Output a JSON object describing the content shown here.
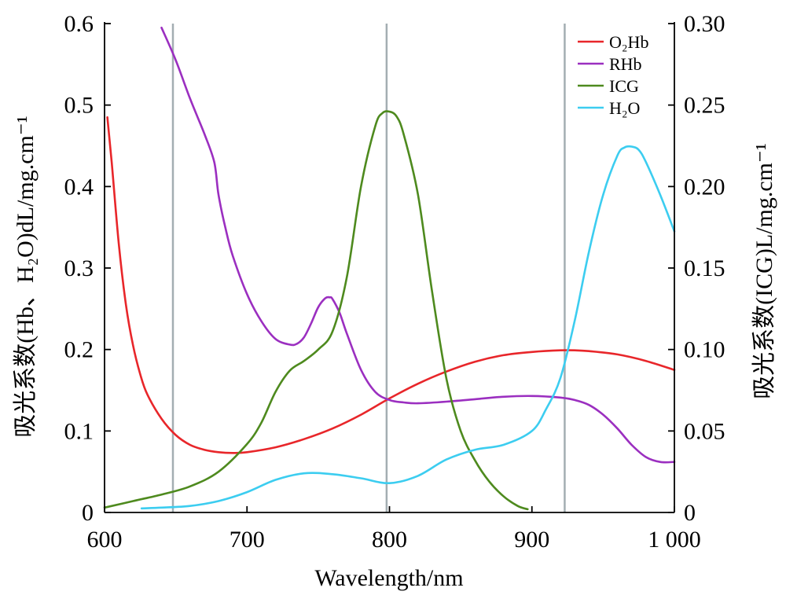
{
  "chart_data": {
    "type": "line",
    "xlabel": "Wavelength/nm",
    "ylabel_left": "吸光系数(Hb、H₂O)dL/mg.cm⁻¹",
    "ylabel_right": "吸光系数(ICG)L/mg.cm⁻¹",
    "xlim": [
      600,
      1000
    ],
    "ylim_left": [
      0,
      0.6
    ],
    "ylim_right": [
      0,
      0.3
    ],
    "x_ticks": [
      600,
      700,
      800,
      900,
      1000
    ],
    "x_tick_labels": [
      "600",
      "700",
      "800",
      "900",
      "1 000"
    ],
    "y_left_ticks": [
      0,
      0.1,
      0.2,
      0.3,
      0.4,
      0.5,
      0.6
    ],
    "y_left_tick_labels": [
      "0",
      "0.1",
      "0.2",
      "0.3",
      "0.4",
      "0.5",
      "0.6"
    ],
    "y_right_ticks": [
      0,
      0.05,
      0.1,
      0.15,
      0.2,
      0.25,
      0.3
    ],
    "y_right_tick_labels": [
      "0",
      "0.05",
      "0.10",
      "0.15",
      "0.20",
      "0.25",
      "0.30"
    ],
    "vertical_lines": [
      648,
      798,
      923
    ],
    "grid": false,
    "legend_position": "top-right",
    "series": [
      {
        "name": "O₂Hb",
        "axis": "left",
        "color": "#e8262a",
        "x": [
          602,
          605,
          610,
          615,
          620,
          625,
          630,
          640,
          650,
          660,
          670,
          680,
          690,
          700,
          720,
          740,
          760,
          780,
          800,
          820,
          840,
          860,
          880,
          900,
          920,
          930,
          940,
          960,
          980,
          1000
        ],
        "y": [
          0.485,
          0.43,
          0.33,
          0.255,
          0.205,
          0.17,
          0.145,
          0.115,
          0.095,
          0.083,
          0.077,
          0.074,
          0.073,
          0.074,
          0.08,
          0.09,
          0.103,
          0.12,
          0.14,
          0.158,
          0.173,
          0.185,
          0.193,
          0.197,
          0.199,
          0.199,
          0.198,
          0.194,
          0.186,
          0.175
        ]
      },
      {
        "name": "RHb",
        "axis": "left",
        "color": "#9b2fc0",
        "x": [
          640,
          650,
          660,
          670,
          677,
          680,
          685,
          690,
          700,
          710,
          720,
          730,
          735,
          740,
          745,
          750,
          755,
          758,
          760,
          765,
          770,
          780,
          790,
          800,
          810,
          820,
          840,
          860,
          880,
          900,
          920,
          930,
          940,
          950,
          960,
          970,
          980,
          990,
          1000
        ],
        "y": [
          0.595,
          0.555,
          0.508,
          0.465,
          0.43,
          0.39,
          0.348,
          0.315,
          0.268,
          0.235,
          0.213,
          0.206,
          0.207,
          0.215,
          0.232,
          0.252,
          0.263,
          0.264,
          0.262,
          0.245,
          0.22,
          0.175,
          0.148,
          0.138,
          0.135,
          0.134,
          0.136,
          0.139,
          0.142,
          0.143,
          0.141,
          0.138,
          0.132,
          0.12,
          0.103,
          0.083,
          0.068,
          0.062,
          0.062
        ]
      },
      {
        "name": "ICG",
        "axis": "right",
        "color": "#4e8a1e",
        "x": [
          600,
          620,
          640,
          660,
          680,
          700,
          710,
          720,
          730,
          740,
          750,
          760,
          770,
          780,
          790,
          795,
          800,
          805,
          810,
          820,
          830,
          840,
          850,
          860,
          870,
          880,
          890,
          897
        ],
        "y": [
          0.003,
          0.007,
          0.011,
          0.016,
          0.025,
          0.042,
          0.055,
          0.074,
          0.087,
          0.093,
          0.1,
          0.111,
          0.144,
          0.2,
          0.237,
          0.245,
          0.246,
          0.243,
          0.232,
          0.195,
          0.135,
          0.082,
          0.05,
          0.032,
          0.019,
          0.01,
          0.004,
          0.002
        ]
      },
      {
        "name": "H₂O",
        "axis": "left",
        "color": "#3ccdf0",
        "x": [
          626,
          640,
          660,
          680,
          700,
          720,
          740,
          760,
          780,
          800,
          820,
          840,
          860,
          880,
          900,
          910,
          920,
          930,
          940,
          950,
          960,
          965,
          970,
          975,
          980,
          990,
          1000
        ],
        "y": [
          0.005,
          0.006,
          0.008,
          0.014,
          0.025,
          0.04,
          0.048,
          0.047,
          0.042,
          0.036,
          0.045,
          0.065,
          0.077,
          0.083,
          0.1,
          0.127,
          0.165,
          0.235,
          0.32,
          0.39,
          0.438,
          0.448,
          0.449,
          0.445,
          0.43,
          0.39,
          0.345
        ]
      }
    ]
  }
}
